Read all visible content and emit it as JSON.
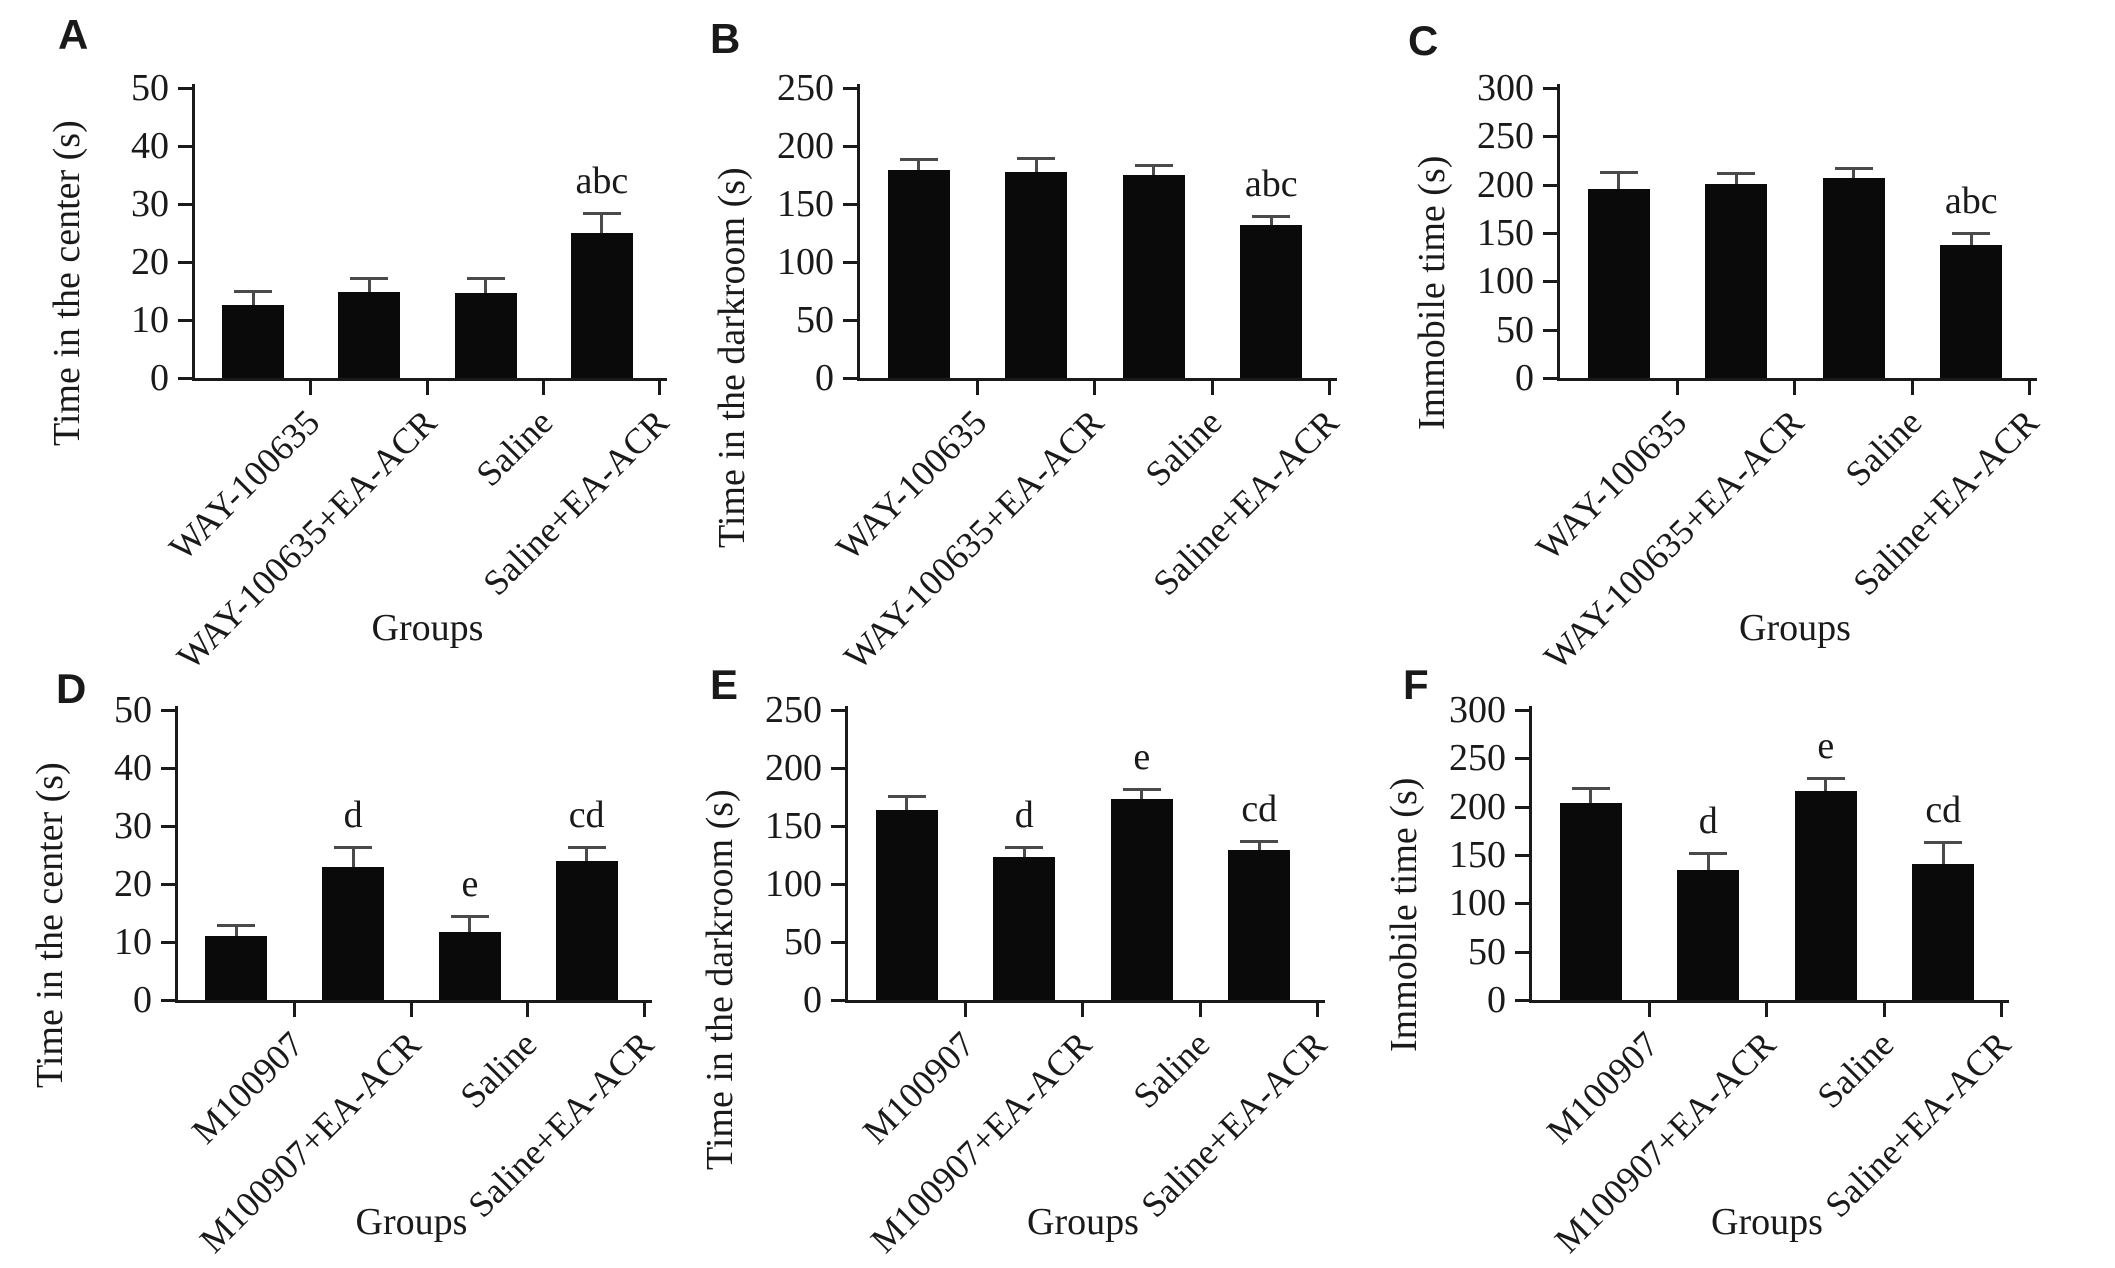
{
  "figure": {
    "background": "#ffffff",
    "bar_color": "#0a0a0a",
    "axis_color": "#1a1a1a",
    "error_bar_color": "#4a4a4a",
    "groups_axis_label": "Groups"
  },
  "chart_data": [
    {
      "panel": "A",
      "type": "bar",
      "ylabel": "Time in the center (s)",
      "xlabel": "Groups",
      "categories": [
        "WAY-100635",
        "WAY-100635+EA-ACR",
        "Saline",
        "Saline+EA-ACR"
      ],
      "values": [
        12.6,
        14.8,
        14.6,
        25.0
      ],
      "errors": [
        2.3,
        2.2,
        2.5,
        3.3
      ],
      "annotations": [
        "",
        "",
        "",
        "abc"
      ],
      "ylim": [
        0,
        50
      ],
      "yticks": [
        0,
        10,
        20,
        30,
        40,
        50
      ]
    },
    {
      "panel": "B",
      "type": "bar",
      "ylabel": "Time in the darkroom (s)",
      "xlabel": "",
      "categories": [
        "WAY-100635",
        "WAY-100635+EA-ACR",
        "Saline",
        "Saline+EA-ACR"
      ],
      "values": [
        179,
        178,
        175,
        132
      ],
      "errors": [
        9,
        11,
        8,
        7
      ],
      "annotations": [
        "",
        "",
        "",
        "abc"
      ],
      "ylim": [
        0,
        250
      ],
      "yticks": [
        0,
        50,
        100,
        150,
        200,
        250
      ]
    },
    {
      "panel": "C",
      "type": "bar",
      "ylabel": "Immobile time (s)",
      "xlabel": "Groups",
      "categories": [
        "WAY-100635",
        "WAY-100635+EA-ACR",
        "Saline",
        "Saline+EA-ACR"
      ],
      "values": [
        196,
        201,
        207,
        138
      ],
      "errors": [
        16,
        10,
        9,
        11
      ],
      "annotations": [
        "",
        "",
        "",
        "abc"
      ],
      "ylim": [
        0,
        300
      ],
      "yticks": [
        0,
        50,
        100,
        150,
        200,
        250,
        300
      ]
    },
    {
      "panel": "D",
      "type": "bar",
      "ylabel": "Time in the center (s)",
      "xlabel": "Groups",
      "categories": [
        "M100907",
        "M100907+EA-ACR",
        "Saline",
        "Saline+EA-ACR"
      ],
      "values": [
        11,
        23,
        11.7,
        24
      ],
      "errors": [
        1.8,
        3.2,
        2.6,
        2.2
      ],
      "annotations": [
        "",
        "d",
        "e",
        "cd"
      ],
      "ylim": [
        0,
        50
      ],
      "yticks": [
        0,
        10,
        20,
        30,
        40,
        50
      ]
    },
    {
      "panel": "E",
      "type": "bar",
      "ylabel": "Time in the darkroom (s)",
      "xlabel": "Groups",
      "categories": [
        "M100907",
        "M100907+EA-ACR",
        "Saline",
        "Saline+EA-ACR"
      ],
      "values": [
        164,
        123,
        173,
        129
      ],
      "errors": [
        11,
        8,
        8,
        7
      ],
      "annotations": [
        "",
        "d",
        "e",
        "cd"
      ],
      "ylim": [
        0,
        250
      ],
      "yticks": [
        0,
        50,
        100,
        150,
        200,
        250
      ]
    },
    {
      "panel": "F",
      "type": "bar",
      "ylabel": "Immobile time (s)",
      "xlabel": "Groups",
      "categories": [
        "M100907",
        "M100907+EA-ACR",
        "Saline",
        "Saline+EA-ACR"
      ],
      "values": [
        204,
        134,
        216,
        141
      ],
      "errors": [
        14,
        17,
        13,
        21
      ],
      "annotations": [
        "",
        "d",
        "e",
        "cd"
      ],
      "ylim": [
        0,
        300
      ],
      "yticks": [
        0,
        50,
        100,
        150,
        200,
        250,
        300
      ]
    }
  ]
}
